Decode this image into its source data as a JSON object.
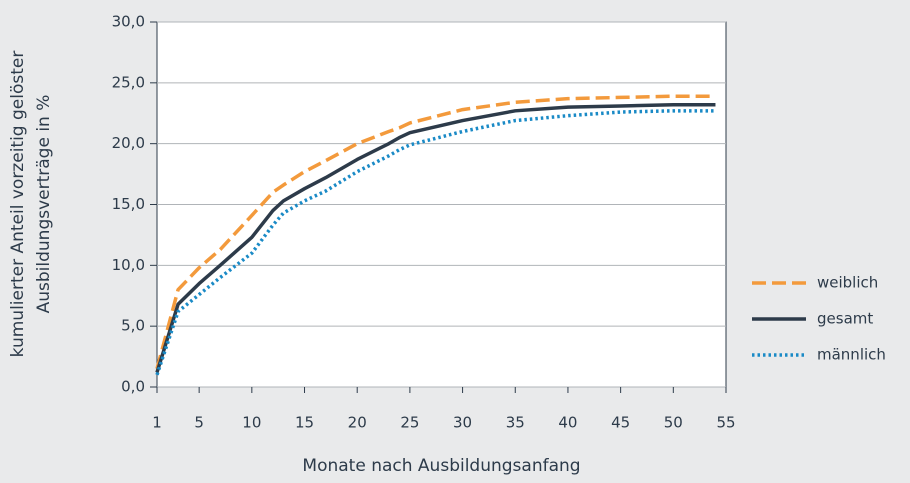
{
  "chart_data": {
    "type": "line",
    "x_label": "Monate nach Ausbildungsanfang",
    "y_label": [
      "kumulierter Anteil vorzeitig gelöster",
      "Ausbildungsverträge in %"
    ],
    "x": [
      1,
      3,
      5,
      7,
      10,
      12,
      13,
      15,
      17,
      20,
      23,
      24,
      25,
      30,
      35,
      40,
      45,
      50,
      54
    ],
    "series": [
      {
        "name": "weiblich",
        "color": "#f39a3c",
        "dash": "dashed",
        "values": [
          1.5,
          8.0,
          9.8,
          11.3,
          14.1,
          16.0,
          16.6,
          17.7,
          18.6,
          20.0,
          21.0,
          21.3,
          21.7,
          22.8,
          23.4,
          23.7,
          23.8,
          23.9,
          23.9
        ]
      },
      {
        "name": "gesamt",
        "color": "#2d3b4a",
        "dash": "solid",
        "values": [
          1.2,
          6.8,
          8.5,
          10.0,
          12.3,
          14.5,
          15.3,
          16.3,
          17.2,
          18.7,
          20.0,
          20.5,
          20.9,
          21.9,
          22.7,
          23.0,
          23.1,
          23.2,
          23.2
        ]
      },
      {
        "name": "männlich",
        "color": "#1a8ac6",
        "dash": "dotted",
        "values": [
          1.0,
          6.2,
          7.6,
          9.0,
          11.0,
          13.3,
          14.3,
          15.3,
          16.1,
          17.7,
          19.0,
          19.5,
          19.9,
          21.0,
          21.9,
          22.3,
          22.6,
          22.7,
          22.7
        ]
      }
    ],
    "xlim": [
      1,
      55
    ],
    "xticks": [
      1,
      5,
      10,
      15,
      20,
      25,
      30,
      35,
      40,
      45,
      50,
      55
    ],
    "ylim": [
      0,
      30
    ],
    "yticks": [
      {
        "value": 0,
        "label": "0,0"
      },
      {
        "value": 5,
        "label": "5,0"
      },
      {
        "value": 10,
        "label": "10,0"
      },
      {
        "value": 15,
        "label": "15,0"
      },
      {
        "value": 20,
        "label": "20,0"
      },
      {
        "value": 25,
        "label": "25,0"
      },
      {
        "value": 30,
        "label": "30,0"
      }
    ],
    "grid": true,
    "legend": "right"
  }
}
